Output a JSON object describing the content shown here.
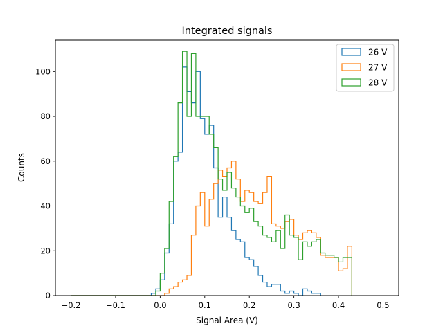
{
  "chart_data": {
    "type": "histogram",
    "title": "Integrated signals",
    "xlabel": "Signal Area (V)",
    "ylabel": "Counts",
    "xlim": [
      -0.235,
      0.535
    ],
    "ylim": [
      0,
      114
    ],
    "x_ticks": [
      -0.2,
      -0.1,
      0.0,
      0.1,
      0.2,
      0.3,
      0.4,
      0.5
    ],
    "x_tick_labels": [
      "−0.2",
      "−0.1",
      "0.0",
      "0.1",
      "0.2",
      "0.3",
      "0.4",
      "0.5"
    ],
    "y_ticks": [
      0,
      20,
      40,
      60,
      80,
      100
    ],
    "y_tick_labels": [
      "0",
      "20",
      "40",
      "60",
      "80",
      "100"
    ],
    "grid": false,
    "legend_position": "top-right",
    "bin_range": [
      -0.2,
      0.5
    ],
    "bin_width": 0.01,
    "series": [
      {
        "name": "26 V",
        "color": "#1f77b4",
        "counts": [
          0,
          0,
          0,
          0,
          0,
          0,
          0,
          0,
          0,
          0,
          0,
          0,
          0,
          0,
          0,
          0,
          0,
          0,
          1,
          3,
          7,
          19,
          32,
          60,
          64,
          102,
          91,
          86,
          100,
          79,
          72,
          76,
          57,
          35,
          44,
          35,
          29,
          25,
          24,
          17,
          16,
          13,
          9,
          6,
          4,
          5,
          5,
          2,
          1,
          2,
          1,
          0,
          3,
          2,
          1,
          1
        ]
      },
      {
        "name": "27 V",
        "color": "#ff7f0e",
        "counts": [
          0,
          0,
          0,
          0,
          0,
          0,
          0,
          0,
          0,
          0,
          0,
          0,
          0,
          0,
          0,
          0,
          0,
          0,
          0,
          0,
          0,
          1,
          3,
          4,
          6,
          7,
          9,
          27,
          40,
          46,
          31,
          43,
          50,
          56,
          53,
          57,
          60,
          52,
          42,
          47,
          46,
          42,
          41,
          46,
          53,
          32,
          31,
          30,
          33,
          34,
          27,
          25,
          28,
          29,
          28,
          26,
          18,
          17,
          17,
          17,
          11,
          12,
          22
        ]
      },
      {
        "name": "28 V",
        "color": "#2ca02c",
        "counts": [
          0,
          0,
          0,
          0,
          0,
          0,
          0,
          0,
          0,
          0,
          0,
          0,
          0,
          0,
          0,
          0,
          0,
          0,
          0,
          2,
          10,
          21,
          42,
          62,
          86,
          109,
          80,
          108,
          80,
          80,
          80,
          72,
          66,
          52,
          47,
          55,
          48,
          44,
          40,
          37,
          39,
          33,
          31,
          27,
          26,
          24,
          29,
          21,
          36,
          27,
          26,
          16,
          24,
          22,
          24,
          25,
          19,
          18,
          18,
          17,
          15,
          17,
          17
        ]
      }
    ]
  }
}
